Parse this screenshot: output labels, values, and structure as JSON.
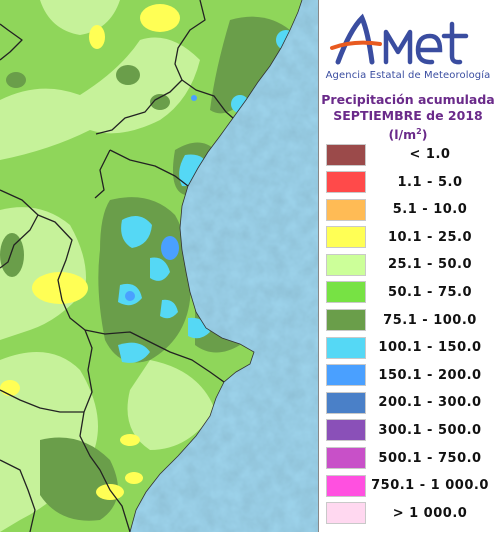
{
  "header": {
    "logo_text": "AEmet",
    "agency": "Agencia Estatal de Meteorología",
    "title_line1": "Precipitación acumulada",
    "title_line2": "SEPTIEMBRE de 2018",
    "unit_base": "(l/m",
    "unit_exp": "2",
    "unit_close": ")"
  },
  "legend": [
    {
      "label": "< 1.0",
      "color": "#9b4a4a"
    },
    {
      "label": "1.1 - 5.0",
      "color": "#ff4a4a"
    },
    {
      "label": "5.1 - 10.0",
      "color": "#ffbb55"
    },
    {
      "label": "10.1 - 25.0",
      "color": "#ffff55"
    },
    {
      "label": "25.1 - 50.0",
      "color": "#ccff99"
    },
    {
      "label": "50.1 - 75.0",
      "color": "#77e244"
    },
    {
      "label": "75.1 - 100.0",
      "color": "#6a9e4a"
    },
    {
      "label": "100.1 - 150.0",
      "color": "#55d8f5"
    },
    {
      "label": "150.1 - 200.0",
      "color": "#4aa0ff"
    },
    {
      "label": "200.1 - 300.0",
      "color": "#4a80c8"
    },
    {
      "label": "300.1 - 500.0",
      "color": "#8a50b8"
    },
    {
      "label": "500.1 - 750.0",
      "color": "#c850c8"
    },
    {
      "label": "750.1 - 1 000.0",
      "color": "#ff50e0"
    },
    {
      "label": "> 1 000.0",
      "color": "#ffd8f0"
    }
  ],
  "map": {
    "sea_color": "#a8dcf2",
    "land_color": "#8fd65a"
  }
}
